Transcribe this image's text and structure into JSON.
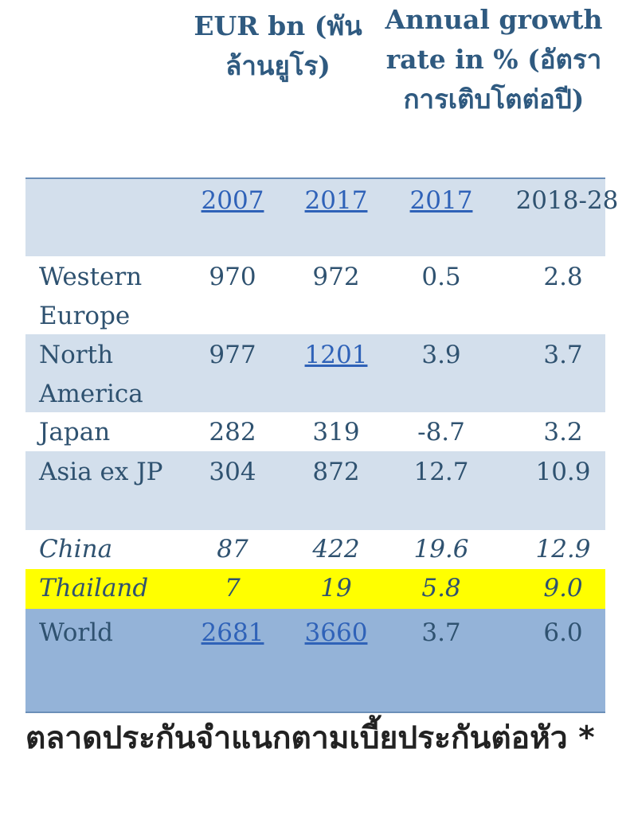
{
  "header": {
    "eur_col": "EUR bn (พันล้านยูโร)",
    "growth_col": "Annual growth rate in % (อัตราการเติบโตต่อปี)"
  },
  "years": {
    "y1": "2007",
    "y2": "2017",
    "y3": "2017",
    "y4": "2018-28"
  },
  "rows": [
    {
      "region": "Western Europe",
      "v2007": "970",
      "v2017": "972",
      "g2017": "0.5",
      "g2018_28": "2.8"
    },
    {
      "region": "North America",
      "v2007": "977",
      "v2017": "1201",
      "g2017": "3.9",
      "g2018_28": "3.7"
    },
    {
      "region": "Japan",
      "v2007": "282",
      "v2017": "319",
      "g2017": "-8.7",
      "g2018_28": "3.2"
    },
    {
      "region": "Asia ex JP",
      "v2007": "304",
      "v2017": "872",
      "g2017": "12.7",
      "g2018_28": "10.9"
    },
    {
      "region": "China",
      "v2007": "87",
      "v2017": "422",
      "g2017": "19.6",
      "g2018_28": "12.9"
    },
    {
      "region": "Thailand",
      "v2007": "7",
      "v2017": "19",
      "g2017": "5.8",
      "g2018_28": "9.0"
    },
    {
      "region": "World",
      "v2007": "2681",
      "v2017": "3660",
      "g2017": "3.7",
      "g2018_28": "6.0"
    }
  ],
  "caption": "ตลาดประกันจำแนกตามเบี้ยประกันต่อหัว *",
  "colors": {
    "band": "#d3dfec",
    "highlight": "#ffff00",
    "world": "#94b3d8",
    "header_text": "#2f5a80"
  }
}
